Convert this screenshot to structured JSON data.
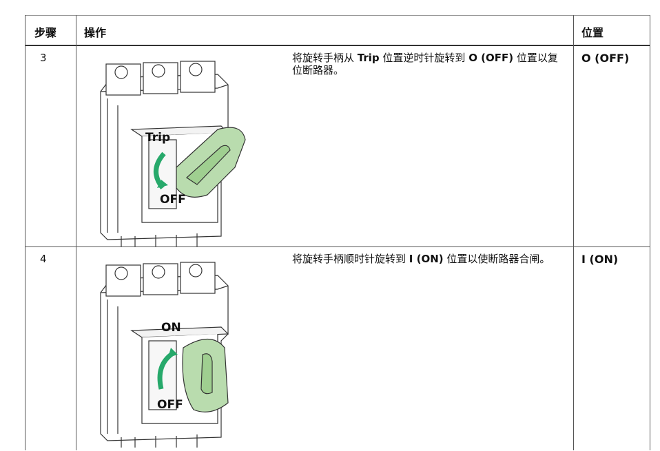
{
  "table": {
    "header": [
      "步骤",
      "操作",
      "位置"
    ],
    "rows": [
      {
        "step": "3",
        "figure": {
          "labels": [
            "Trip",
            "OFF"
          ]
        },
        "description": [
          {
            "text": "将旋转手柄从 ",
            "bold": false
          },
          {
            "text": "Trip",
            "bold": true
          },
          {
            "text": " 位置逆时针旋转到 ",
            "bold": false
          },
          {
            "text": "O (OFF)",
            "bold": true
          },
          {
            "text": " 位置以复位断路器。",
            "bold": false
          }
        ],
        "position": "O (OFF)"
      },
      {
        "step": "4",
        "figure": {
          "labels": [
            "ON",
            "OFF"
          ]
        },
        "description": [
          {
            "text": "将旋转手柄顺时针旋转到 ",
            "bold": false
          },
          {
            "text": "I (ON)",
            "bold": true
          },
          {
            "text": " 位置以使断路器合闸。",
            "bold": false
          }
        ],
        "position": "I (ON)"
      }
    ]
  }
}
